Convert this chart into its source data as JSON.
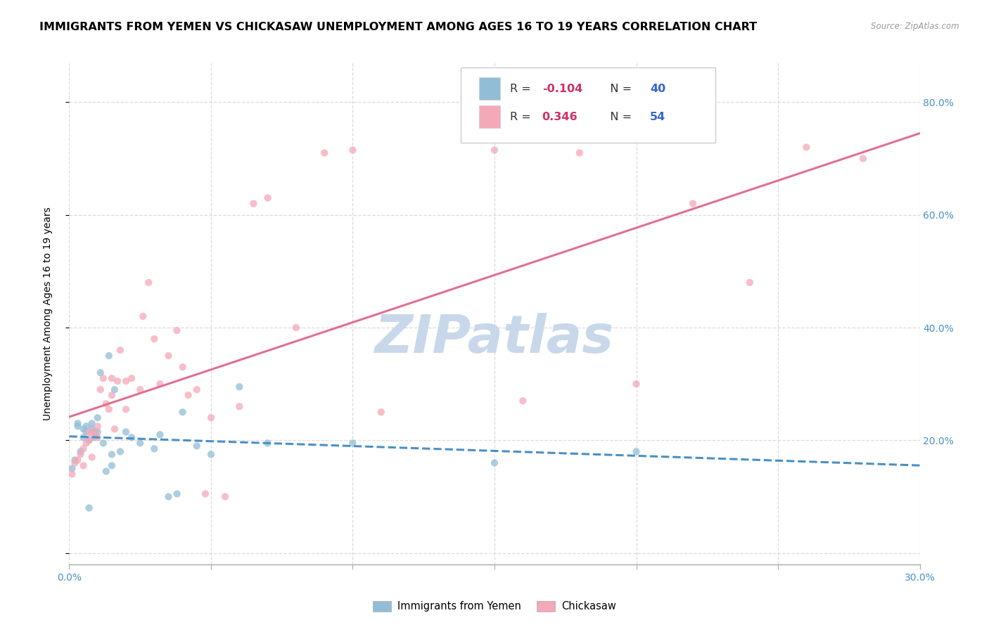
{
  "title": "IMMIGRANTS FROM YEMEN VS CHICKASAW UNEMPLOYMENT AMONG AGES 16 TO 19 YEARS CORRELATION CHART",
  "source": "Source: ZipAtlas.com",
  "ylabel": "Unemployment Among Ages 16 to 19 years",
  "xmin": 0.0,
  "xmax": 0.3,
  "ymin": -0.02,
  "ymax": 0.87,
  "yticks": [
    0.0,
    0.2,
    0.4,
    0.6,
    0.8
  ],
  "ytick_labels_right": [
    "",
    "20.0%",
    "40.0%",
    "60.0%",
    "80.0%"
  ],
  "xticks": [
    0.0,
    0.05,
    0.1,
    0.15,
    0.2,
    0.25,
    0.3
  ],
  "blue_scatter_x": [
    0.001,
    0.002,
    0.003,
    0.003,
    0.004,
    0.005,
    0.005,
    0.006,
    0.006,
    0.007,
    0.007,
    0.008,
    0.008,
    0.009,
    0.009,
    0.01,
    0.01,
    0.011,
    0.012,
    0.013,
    0.014,
    0.015,
    0.015,
    0.016,
    0.018,
    0.02,
    0.022,
    0.025,
    0.03,
    0.032,
    0.035,
    0.038,
    0.04,
    0.045,
    0.05,
    0.06,
    0.07,
    0.1,
    0.15,
    0.2
  ],
  "blue_scatter_y": [
    0.15,
    0.165,
    0.225,
    0.23,
    0.18,
    0.205,
    0.22,
    0.215,
    0.225,
    0.08,
    0.2,
    0.22,
    0.23,
    0.205,
    0.215,
    0.215,
    0.24,
    0.32,
    0.195,
    0.145,
    0.35,
    0.155,
    0.175,
    0.29,
    0.18,
    0.215,
    0.205,
    0.195,
    0.185,
    0.21,
    0.1,
    0.105,
    0.25,
    0.19,
    0.175,
    0.295,
    0.195,
    0.195,
    0.16,
    0.18
  ],
  "pink_scatter_x": [
    0.001,
    0.002,
    0.003,
    0.004,
    0.005,
    0.005,
    0.006,
    0.007,
    0.007,
    0.008,
    0.008,
    0.009,
    0.01,
    0.01,
    0.011,
    0.012,
    0.013,
    0.014,
    0.015,
    0.015,
    0.016,
    0.017,
    0.018,
    0.02,
    0.02,
    0.022,
    0.025,
    0.026,
    0.028,
    0.03,
    0.032,
    0.035,
    0.038,
    0.04,
    0.042,
    0.045,
    0.048,
    0.05,
    0.055,
    0.06,
    0.065,
    0.07,
    0.08,
    0.09,
    0.1,
    0.11,
    0.15,
    0.16,
    0.18,
    0.2,
    0.22,
    0.24,
    0.26,
    0.28
  ],
  "pink_scatter_y": [
    0.14,
    0.16,
    0.165,
    0.175,
    0.155,
    0.185,
    0.195,
    0.2,
    0.215,
    0.17,
    0.21,
    0.215,
    0.205,
    0.225,
    0.29,
    0.31,
    0.265,
    0.255,
    0.28,
    0.31,
    0.22,
    0.305,
    0.36,
    0.255,
    0.305,
    0.31,
    0.29,
    0.42,
    0.48,
    0.38,
    0.3,
    0.35,
    0.395,
    0.33,
    0.28,
    0.29,
    0.105,
    0.24,
    0.1,
    0.26,
    0.62,
    0.63,
    0.4,
    0.71,
    0.715,
    0.25,
    0.715,
    0.27,
    0.71,
    0.3,
    0.62,
    0.48,
    0.72,
    0.7
  ],
  "blue_color": "#92bdd6",
  "pink_color": "#f4a8b8",
  "blue_line_color": "#4a90c4",
  "pink_line_color": "#e07090",
  "watermark_text": "ZIPatlas",
  "watermark_color": "#c8d8ea",
  "scatter_size": 55,
  "scatter_alpha": 0.75,
  "background_color": "#ffffff",
  "grid_color": "#d8d8d8",
  "title_fontsize": 11.5,
  "axis_label_fontsize": 10,
  "tick_label_fontsize": 10,
  "legend_fontsize": 11.5
}
